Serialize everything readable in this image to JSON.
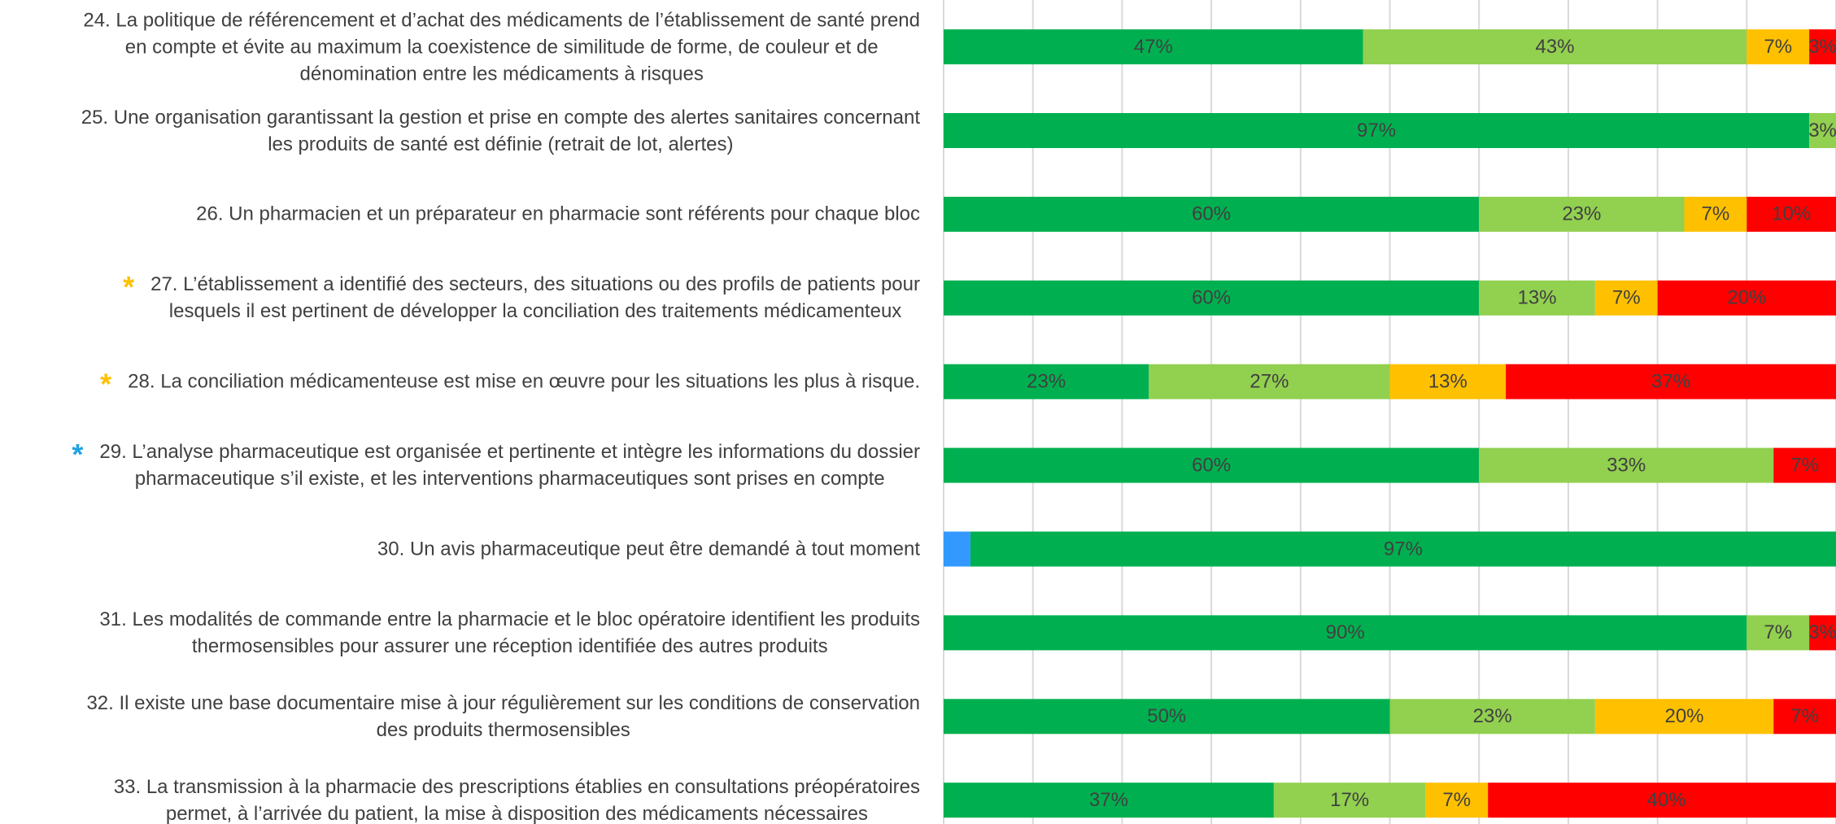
{
  "chart_data": {
    "type": "stacked-barh",
    "categories": [
      "24. La politique de référencement et d’achat des médicaments de l’établissement de santé prend\nen compte et évite au maximum la coexistence de similitude de forme, de couleur et de\ndénomination entre les médicaments à risques",
      "25. Une organisation garantissant la gestion et prise en compte des alertes sanitaires concernant\nles produits de santé est définie (retrait de lot, alertes)",
      "26. Un pharmacien et un préparateur en pharmacie sont référents pour chaque bloc",
      "27. L’établissement a identifié des secteurs, des situations ou des profils de patients pour\nlesquels il est pertinent de développer la conciliation des traitements médicamenteux",
      "28. La conciliation médicamenteuse est mise en œuvre pour les situations les plus à risque.",
      "29. L’analyse pharmaceutique est organisée et pertinente et intègre les informations du dossier\npharmaceutique s’il existe, et les interventions pharmaceutiques sont prises en compte",
      "30. Un avis pharmaceutique peut être demandé à tout moment",
      "31. Les modalités de commande entre la pharmacie et le bloc opératoire identifient les produits\nthermosensibles pour assurer une réception identifiée des autres produits",
      "32. Il existe une base documentaire mise à jour régulièrement sur les conditions de conservation\ndes produits thermosensibles",
      "33. La transmission à la pharmacie des prescriptions établies en consultations préopératoires\npermet, à l’arrivée du patient, la mise à disposition des médicaments nécessaires"
    ],
    "category_markers": [
      null,
      null,
      null,
      {
        "text": "*",
        "color": "#ffc000"
      },
      {
        "text": "*",
        "color": "#ffc000"
      },
      {
        "text": "*",
        "color": "#1fa3e0"
      },
      null,
      null,
      null,
      null
    ],
    "series": [
      {
        "color": "#3399ff",
        "values": [
          null,
          null,
          null,
          null,
          null,
          null,
          3,
          null,
          null,
          null
        ]
      },
      {
        "color": "#00b050",
        "values": [
          47,
          97,
          60,
          60,
          23,
          60,
          97,
          90,
          50,
          37
        ],
        "value_labels": [
          "47%",
          "97%",
          "60%",
          "60%",
          "23%",
          "60%",
          "97%",
          "90%",
          "50%",
          "37%"
        ]
      },
      {
        "color": "#92d050",
        "values": [
          43,
          3,
          23,
          13,
          27,
          33,
          null,
          7,
          23,
          17
        ],
        "value_labels": [
          "43%",
          "3%",
          "23%",
          "13%",
          "27%",
          "33%",
          null,
          "7%",
          "23%",
          "17%"
        ]
      },
      {
        "color": "#ffc000",
        "values": [
          7,
          null,
          7,
          7,
          13,
          null,
          null,
          null,
          20,
          7
        ],
        "value_labels": [
          "7%",
          null,
          "7%",
          "7%",
          "13%",
          null,
          null,
          null,
          "20%",
          "7%"
        ]
      },
      {
        "color": "#ff0000",
        "values": [
          3,
          null,
          10,
          20,
          37,
          7,
          null,
          3,
          7,
          40
        ],
        "value_labels": [
          "3%",
          null,
          "10%",
          "20%",
          "37%",
          "7%",
          null,
          "3%",
          "7%",
          "40%"
        ]
      }
    ],
    "xlim": [
      0,
      100
    ],
    "xticks": [
      0,
      10,
      20,
      30,
      40,
      50,
      60,
      70,
      80,
      90,
      100
    ],
    "grid": true
  }
}
